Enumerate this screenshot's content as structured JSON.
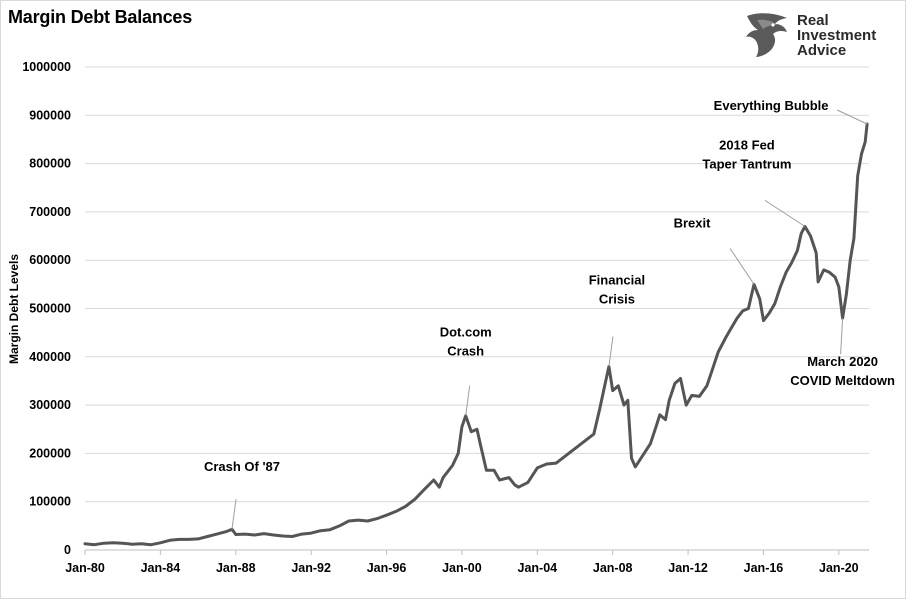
{
  "chart_data": {
    "type": "line",
    "title": "Margin Debt Balances",
    "ylabel": "Margin Debt Levels",
    "xlabel": "",
    "ylim": [
      0,
      1000000
    ],
    "y_ticks": [
      "0",
      "100000",
      "200000",
      "300000",
      "400000",
      "500000",
      "600000",
      "700000",
      "800000",
      "900000",
      "1000000"
    ],
    "x_ticks": [
      "Jan-80",
      "Jan-84",
      "Jan-88",
      "Jan-92",
      "Jan-96",
      "Jan-00",
      "Jan-04",
      "Jan-08",
      "Jan-12",
      "Jan-16",
      "Jan-20"
    ],
    "grid": true,
    "legend": "none",
    "series": [
      {
        "color": "#555555",
        "points": [
          [
            1980.0,
            13000
          ],
          [
            1980.5,
            11000
          ],
          [
            1981.0,
            14000
          ],
          [
            1981.5,
            15000
          ],
          [
            1982.0,
            14000
          ],
          [
            1982.5,
            12000
          ],
          [
            1983.0,
            13000
          ],
          [
            1983.5,
            11000
          ],
          [
            1984.0,
            15000
          ],
          [
            1984.5,
            20000
          ],
          [
            1985.0,
            22000
          ],
          [
            1985.5,
            22000
          ],
          [
            1986.0,
            23000
          ],
          [
            1986.5,
            28000
          ],
          [
            1987.0,
            33000
          ],
          [
            1987.5,
            38000
          ],
          [
            1987.8,
            43000
          ],
          [
            1988.0,
            32000
          ],
          [
            1988.5,
            33000
          ],
          [
            1989.0,
            31000
          ],
          [
            1989.5,
            34000
          ],
          [
            1990.0,
            31000
          ],
          [
            1990.5,
            29000
          ],
          [
            1991.0,
            28000
          ],
          [
            1991.5,
            33000
          ],
          [
            1992.0,
            35000
          ],
          [
            1992.5,
            40000
          ],
          [
            1993.0,
            42000
          ],
          [
            1993.5,
            50000
          ],
          [
            1994.0,
            60000
          ],
          [
            1994.5,
            62000
          ],
          [
            1995.0,
            60000
          ],
          [
            1995.5,
            65000
          ],
          [
            1996.0,
            72000
          ],
          [
            1996.5,
            80000
          ],
          [
            1997.0,
            90000
          ],
          [
            1997.5,
            105000
          ],
          [
            1998.0,
            125000
          ],
          [
            1998.5,
            145000
          ],
          [
            1998.8,
            130000
          ],
          [
            1999.0,
            150000
          ],
          [
            1999.5,
            175000
          ],
          [
            1999.8,
            200000
          ],
          [
            2000.0,
            255000
          ],
          [
            2000.2,
            278000
          ],
          [
            2000.5,
            245000
          ],
          [
            2000.8,
            250000
          ],
          [
            2001.0,
            215000
          ],
          [
            2001.3,
            165000
          ],
          [
            2001.7,
            165000
          ],
          [
            2002.0,
            145000
          ],
          [
            2002.5,
            150000
          ],
          [
            2002.8,
            135000
          ],
          [
            2003.0,
            130000
          ],
          [
            2003.5,
            140000
          ],
          [
            2004.0,
            170000
          ],
          [
            2004.5,
            178000
          ],
          [
            2005.0,
            180000
          ],
          [
            2005.5,
            195000
          ],
          [
            2006.0,
            210000
          ],
          [
            2006.5,
            225000
          ],
          [
            2007.0,
            240000
          ],
          [
            2007.3,
            290000
          ],
          [
            2007.6,
            345000
          ],
          [
            2007.8,
            380000
          ],
          [
            2008.0,
            330000
          ],
          [
            2008.3,
            340000
          ],
          [
            2008.6,
            300000
          ],
          [
            2008.8,
            310000
          ],
          [
            2009.0,
            190000
          ],
          [
            2009.2,
            172000
          ],
          [
            2009.5,
            190000
          ],
          [
            2010.0,
            220000
          ],
          [
            2010.3,
            255000
          ],
          [
            2010.5,
            280000
          ],
          [
            2010.8,
            270000
          ],
          [
            2011.0,
            310000
          ],
          [
            2011.3,
            345000
          ],
          [
            2011.6,
            355000
          ],
          [
            2011.9,
            300000
          ],
          [
            2012.2,
            320000
          ],
          [
            2012.6,
            318000
          ],
          [
            2013.0,
            340000
          ],
          [
            2013.3,
            375000
          ],
          [
            2013.6,
            410000
          ],
          [
            2014.0,
            440000
          ],
          [
            2014.3,
            460000
          ],
          [
            2014.6,
            480000
          ],
          [
            2014.9,
            495000
          ],
          [
            2015.2,
            500000
          ],
          [
            2015.5,
            550000
          ],
          [
            2015.8,
            520000
          ],
          [
            2016.0,
            475000
          ],
          [
            2016.3,
            490000
          ],
          [
            2016.6,
            510000
          ],
          [
            2016.9,
            545000
          ],
          [
            2017.2,
            575000
          ],
          [
            2017.5,
            595000
          ],
          [
            2017.8,
            620000
          ],
          [
            2018.0,
            655000
          ],
          [
            2018.2,
            670000
          ],
          [
            2018.5,
            650000
          ],
          [
            2018.8,
            615000
          ],
          [
            2018.9,
            555000
          ],
          [
            2019.2,
            580000
          ],
          [
            2019.5,
            575000
          ],
          [
            2019.8,
            565000
          ],
          [
            2020.0,
            545000
          ],
          [
            2020.2,
            480000
          ],
          [
            2020.4,
            530000
          ],
          [
            2020.6,
            600000
          ],
          [
            2020.8,
            645000
          ],
          [
            2021.0,
            775000
          ],
          [
            2021.2,
            820000
          ],
          [
            2021.4,
            845000
          ],
          [
            2021.5,
            882000
          ]
        ]
      }
    ],
    "annotations": [
      {
        "lines": [
          "Crash Of '87"
        ],
        "x": 1987.8,
        "y": 43000,
        "label_pos": "above"
      },
      {
        "lines": [
          "Dot.com",
          "Crash"
        ],
        "x": 2000.2,
        "y": 278000,
        "label_pos": "above"
      },
      {
        "lines": [
          "Financial",
          "Crisis"
        ],
        "x": 2007.8,
        "y": 380000,
        "label_pos": "above"
      },
      {
        "lines": [
          "Brexit"
        ],
        "x": 2015.5,
        "y": 550000,
        "label_pos": "upper-left"
      },
      {
        "lines": [
          "2018 Fed",
          "Taper Tantrum"
        ],
        "x": 2018.2,
        "y": 670000,
        "label_pos": "upper-left"
      },
      {
        "lines": [
          "March 2020",
          "COVID Meltdown"
        ],
        "x": 2020.2,
        "y": 480000,
        "label_pos": "below"
      },
      {
        "lines": [
          "Everything Bubble"
        ],
        "x": 2021.5,
        "y": 882000,
        "label_pos": "left"
      }
    ]
  },
  "brand": {
    "line1": "Real",
    "line2": "Investment",
    "line3": "Advice",
    "logo_icon": "eagle-icon"
  }
}
